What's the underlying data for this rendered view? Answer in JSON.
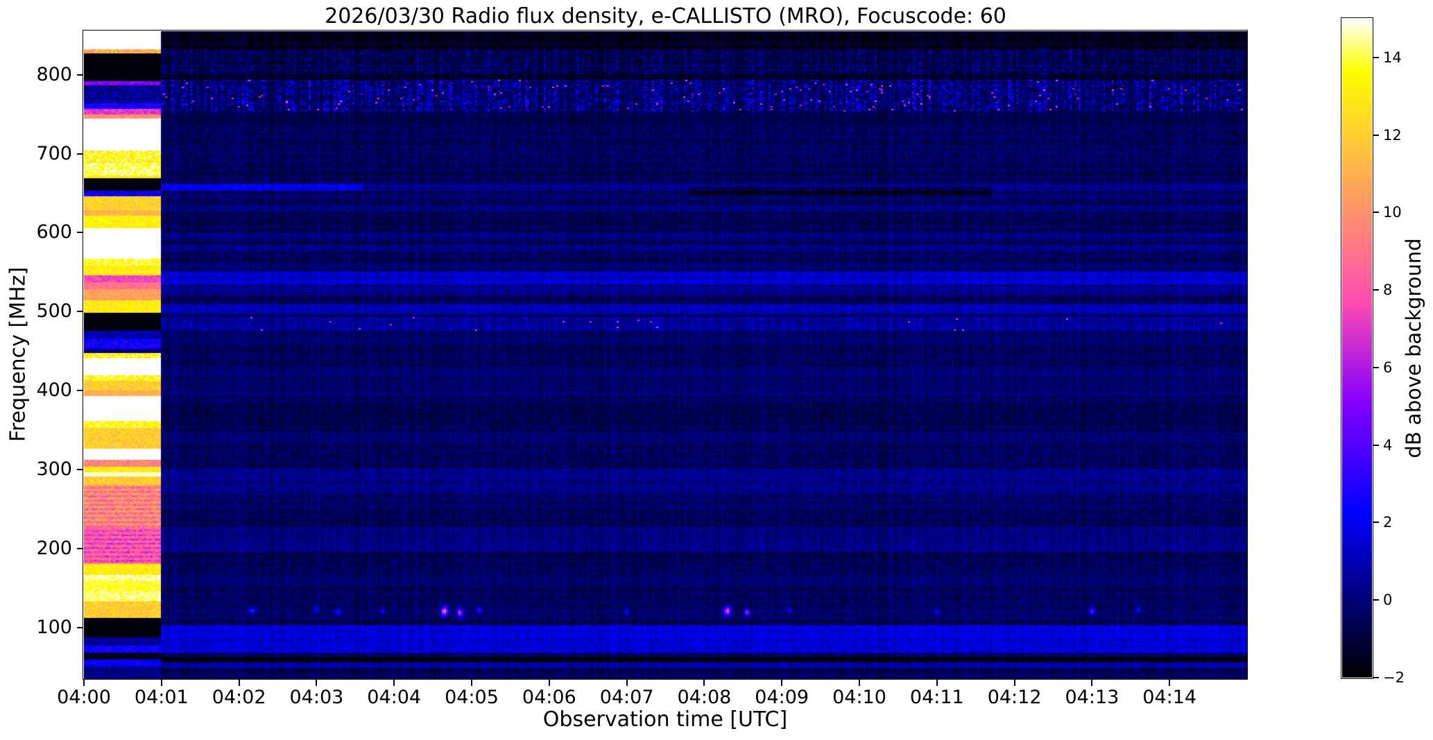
{
  "figure": {
    "title": "2026/03/30  Radio flux density, e-CALLISTO (MRO), Focuscode: 60",
    "xlabel": "Observation time [UTC]",
    "ylabel": "Frequency [MHz]",
    "colorbar_label": "dB above background",
    "background_color": "#ffffff"
  },
  "chart_data": {
    "type": "heatmap",
    "title": "2026/03/30  Radio flux density, e-CALLISTO (MRO), Focuscode: 60",
    "xlabel": "Observation time [UTC]",
    "ylabel": "Frequency [MHz]",
    "x_ticks": [
      "04:00",
      "04:01",
      "04:02",
      "04:03",
      "04:04",
      "04:05",
      "04:06",
      "04:07",
      "04:08",
      "04:09",
      "04:10",
      "04:11",
      "04:12",
      "04:13",
      "04:14"
    ],
    "x_range_minutes": 15,
    "y_ticks": [
      "800",
      "700",
      "600",
      "500",
      "400",
      "300",
      "200",
      "100"
    ],
    "ylim": [
      35,
      855
    ],
    "grid": false,
    "colorbar": {
      "label": "dB above background",
      "tick_labels": [
        "14",
        "12",
        "10",
        "8",
        "6",
        "4",
        "2",
        "0",
        "−2"
      ],
      "tick_values": [
        14,
        12,
        10,
        8,
        6,
        4,
        2,
        0,
        -2
      ],
      "vmin": -2,
      "vmax": 15,
      "colormap": "gnuplot2",
      "position": "right"
    },
    "base_level_db": -0.55,
    "noise": {
      "seed": 7,
      "amp": 0.55,
      "row_amp": 0.35,
      "col_amp": 0.3
    },
    "calibration_minutes": 1,
    "calibration_stripes": [
      [
        855,
        832,
        15,
        0,
        0
      ],
      [
        832,
        827,
        11,
        1.5,
        0
      ],
      [
        827,
        792,
        -1.8,
        0,
        0
      ],
      [
        792,
        787,
        5,
        0.8,
        0
      ],
      [
        787,
        763,
        0.5,
        1.2,
        0.6
      ],
      [
        763,
        756,
        2.8,
        0.8,
        0
      ],
      [
        756,
        750,
        7,
        0.8,
        0
      ],
      [
        750,
        744,
        10,
        0.8,
        0
      ],
      [
        744,
        704,
        15,
        0,
        0
      ],
      [
        704,
        688,
        13.5,
        1.2,
        0
      ],
      [
        688,
        673,
        14.2,
        1,
        0
      ],
      [
        673,
        668,
        13,
        0.6,
        0
      ],
      [
        668,
        653,
        -1.8,
        0,
        0
      ],
      [
        653,
        646,
        2.2,
        1,
        0
      ],
      [
        646,
        628,
        12.2,
        0.8,
        0
      ],
      [
        628,
        622,
        11.2,
        0.6,
        0
      ],
      [
        622,
        605,
        13.2,
        0.6,
        0
      ],
      [
        605,
        567,
        15,
        0,
        0
      ],
      [
        567,
        558,
        13.8,
        0.8,
        0
      ],
      [
        558,
        546,
        13,
        0.6,
        0
      ],
      [
        546,
        537,
        7.5,
        0.7,
        0
      ],
      [
        537,
        528,
        9,
        0.7,
        0
      ],
      [
        528,
        514,
        10.5,
        0.6,
        0
      ],
      [
        514,
        498,
        13,
        0.6,
        0
      ],
      [
        498,
        476,
        -1.8,
        0,
        0
      ],
      [
        476,
        466,
        1,
        0.8,
        0
      ],
      [
        466,
        453,
        2.5,
        1,
        0
      ],
      [
        453,
        447,
        0,
        0.5,
        0
      ],
      [
        447,
        440,
        13.5,
        1.2,
        0
      ],
      [
        440,
        420,
        15,
        0,
        0
      ],
      [
        420,
        412,
        13.5,
        1,
        0
      ],
      [
        412,
        401,
        12,
        0.8,
        0
      ],
      [
        401,
        394,
        11,
        0.6,
        0
      ],
      [
        394,
        362,
        15,
        0,
        0
      ],
      [
        362,
        352,
        13.5,
        1,
        0
      ],
      [
        352,
        327,
        12,
        0.8,
        0
      ],
      [
        327,
        312,
        15,
        0,
        0
      ],
      [
        312,
        304,
        9.5,
        1,
        0
      ],
      [
        304,
        296,
        13,
        0.6,
        0
      ],
      [
        296,
        291,
        14.8,
        0,
        0
      ],
      [
        291,
        280,
        12,
        0.8,
        0
      ],
      [
        280,
        227,
        9.5,
        1.2,
        1.3
      ],
      [
        227,
        181,
        7.8,
        1,
        1.0
      ],
      [
        181,
        166,
        13,
        0.6,
        0
      ],
      [
        166,
        160,
        14.5,
        0.8,
        0
      ],
      [
        160,
        146,
        13.8,
        0.6,
        0
      ],
      [
        146,
        133,
        14.3,
        0.8,
        0
      ],
      [
        133,
        113,
        12,
        0.8,
        0
      ],
      [
        113,
        87,
        -1.8,
        0,
        0
      ],
      [
        87,
        78,
        0.5,
        0.6,
        0
      ],
      [
        78,
        69,
        2.5,
        0.8,
        0
      ],
      [
        69,
        59,
        -1.5,
        0,
        0
      ],
      [
        59,
        50,
        2.2,
        0.6,
        0
      ],
      [
        50,
        35,
        0.2,
        0.5,
        0
      ]
    ],
    "bands": [
      {
        "f": [
          855,
          832
        ],
        "v": -0.9,
        "sp": 2.2,
        "den": 0.06
      },
      {
        "f": [
          832,
          801
        ],
        "v": -0.55,
        "sp": 4.8,
        "den": 0.34
      },
      {
        "f": [
          801,
          793
        ],
        "v": -0.75,
        "sp": 2,
        "den": 0.1
      },
      {
        "f": [
          793,
          753
        ],
        "v": -0.35,
        "sp": 6.5,
        "den": 0.46,
        "hot": 0.012
      },
      {
        "f": [
          753,
          740
        ],
        "v": -0.15,
        "sp": 2.6,
        "den": 0.14
      },
      {
        "f": [
          661,
          653
        ],
        "v": 2.6,
        "t": [
          1,
          3.6
        ]
      },
      {
        "f": [
          661,
          653
        ],
        "v": 1.0,
        "t": [
          3.6,
          15
        ]
      },
      {
        "f": [
          658,
          646
        ],
        "v": -1.0,
        "t": [
          7.8,
          11.7
        ]
      },
      {
        "f": [
          650,
          645
        ],
        "v": 0.7
      },
      {
        "f": [
          633,
          626
        ],
        "v": 0.9
      },
      {
        "f": [
          601,
          592
        ],
        "v": 0.55
      },
      {
        "f": [
          585,
          576
        ],
        "v": 0.85
      },
      {
        "f": [
          561,
          554
        ],
        "v": 0.6
      },
      {
        "f": [
          552,
          533
        ],
        "v": 1.9
      },
      {
        "f": [
          532,
          521
        ],
        "v": 1.0
      },
      {
        "f": [
          509,
          497
        ],
        "v": 1.6
      },
      {
        "f": [
          493,
          475
        ],
        "v": 0.7,
        "sp": 2.6,
        "den": 0.5,
        "hot": 0.004
      },
      {
        "f": [
          475,
          455
        ],
        "v": 0.15,
        "sp": 1.6,
        "den": 0.3
      },
      {
        "f": [
          449,
          438
        ],
        "v": 0.2,
        "sp": 1.4,
        "den": 0.35
      },
      {
        "f": [
          430,
          393
        ],
        "v": 0.2,
        "sp": 1.3,
        "den": 0.4
      },
      {
        "f": [
          347,
          336
        ],
        "v": 0.35
      },
      {
        "f": [
          302,
          268
        ],
        "v": 0.7
      },
      {
        "f": [
          266,
          252
        ],
        "v": 0.3
      },
      {
        "f": [
          229,
          197
        ],
        "v": 0.4,
        "sp": 1.8,
        "den": 0.42
      },
      {
        "f": [
          166,
          152
        ],
        "v": 0.2,
        "sp": 1.4,
        "den": 0.3
      },
      {
        "f": [
          137,
          111
        ],
        "v": 0.1,
        "sp": 2.2,
        "den": 0.1
      },
      {
        "f": [
          104,
          68
        ],
        "v": 2.1
      },
      {
        "f": [
          68,
          63
        ],
        "v": 0.3
      },
      {
        "f": [
          63,
          56
        ],
        "v": -1.2
      },
      {
        "f": [
          56,
          49
        ],
        "v": 1.3
      }
    ],
    "rfi_events": [
      [
        2.17,
        122,
        4,
        0.03,
        3
      ],
      [
        3.0,
        124,
        3,
        0.02,
        3
      ],
      [
        3.28,
        120,
        3.5,
        0.03,
        3
      ],
      [
        3.85,
        121,
        3,
        0.02,
        3
      ],
      [
        4.65,
        121,
        9,
        0.03,
        4
      ],
      [
        4.85,
        119,
        7,
        0.025,
        4
      ],
      [
        5.1,
        122,
        4,
        0.02,
        3
      ],
      [
        7.0,
        120,
        3,
        0.02,
        3
      ],
      [
        8.3,
        121,
        8,
        0.03,
        4
      ],
      [
        8.55,
        119,
        6,
        0.025,
        3
      ],
      [
        9.1,
        122,
        3,
        0.02,
        3
      ],
      [
        11.0,
        120,
        2.5,
        0.02,
        3
      ],
      [
        13.0,
        121,
        5,
        0.025,
        3
      ],
      [
        13.6,
        123,
        3,
        0.02,
        3
      ]
    ]
  }
}
